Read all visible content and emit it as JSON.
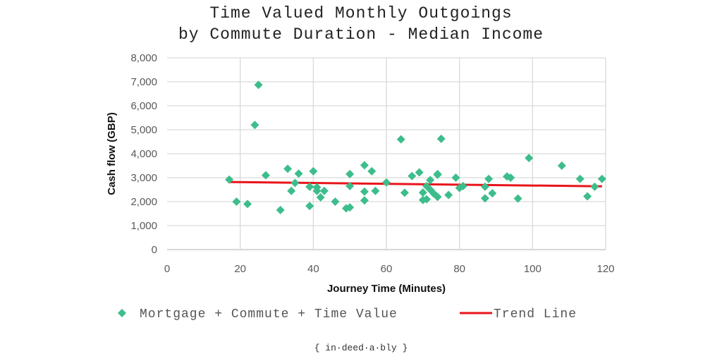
{
  "chart_data": {
    "type": "scatter",
    "title_line1": "Time Valued Monthly Outgoings",
    "title_line2": "by Commute Duration - Median Income",
    "xlabel": "Journey Time (Minutes)",
    "ylabel": "Cash flow (GBP)",
    "xlim": [
      0,
      120
    ],
    "ylim": [
      0,
      8000
    ],
    "xticks": [
      "0",
      "20",
      "40",
      "60",
      "80",
      "100",
      "120"
    ],
    "yticks": [
      "0",
      "1,000",
      "2,000",
      "3,000",
      "4,000",
      "5,000",
      "6,000",
      "7,000",
      "8,000"
    ],
    "grid": true,
    "legend_placement": "bottom",
    "colors": {
      "points": "#3dbd8c",
      "trend": "#e8141b",
      "grid": "#d9d9d9"
    },
    "series": [
      {
        "name": "Mortgage + Commute + Time Value",
        "marker": "diamond",
        "points": [
          [
            17,
            2920
          ],
          [
            19,
            2000
          ],
          [
            22,
            1900
          ],
          [
            24,
            5200
          ],
          [
            25,
            6870
          ],
          [
            27,
            3100
          ],
          [
            31,
            1650
          ],
          [
            33,
            3370
          ],
          [
            34,
            2450
          ],
          [
            35,
            2780
          ],
          [
            36,
            3170
          ],
          [
            39,
            2620
          ],
          [
            39,
            1820
          ],
          [
            40,
            3270
          ],
          [
            41,
            2600
          ],
          [
            41,
            2450
          ],
          [
            42,
            2180
          ],
          [
            43,
            2450
          ],
          [
            46,
            2000
          ],
          [
            49,
            1720
          ],
          [
            50,
            1760
          ],
          [
            50,
            3150
          ],
          [
            50,
            2650
          ],
          [
            54,
            3520
          ],
          [
            54,
            2420
          ],
          [
            54,
            2050
          ],
          [
            56,
            3270
          ],
          [
            57,
            2450
          ],
          [
            60,
            2800
          ],
          [
            64,
            4600
          ],
          [
            65,
            2370
          ],
          [
            67,
            3070
          ],
          [
            69,
            3220
          ],
          [
            70,
            2380
          ],
          [
            70,
            2070
          ],
          [
            71,
            2100
          ],
          [
            71,
            2650
          ],
          [
            72,
            2900
          ],
          [
            72,
            2500
          ],
          [
            73,
            2330
          ],
          [
            74,
            3120
          ],
          [
            74,
            3150
          ],
          [
            74,
            2200
          ],
          [
            75,
            4620
          ],
          [
            77,
            2280
          ],
          [
            79,
            3000
          ],
          [
            80,
            2570
          ],
          [
            81,
            2650
          ],
          [
            87,
            2620
          ],
          [
            87,
            2140
          ],
          [
            88,
            2950
          ],
          [
            89,
            2350
          ],
          [
            93,
            3050
          ],
          [
            94,
            3000
          ],
          [
            96,
            2130
          ],
          [
            99,
            3820
          ],
          [
            108,
            3500
          ],
          [
            113,
            2950
          ],
          [
            115,
            2220
          ],
          [
            117,
            2620
          ],
          [
            119,
            2950
          ]
        ]
      },
      {
        "name": "Trend Line",
        "type": "line",
        "points": [
          [
            17,
            2820
          ],
          [
            119,
            2640
          ]
        ]
      }
    ]
  },
  "credit": "{ in·deed·a·bly }"
}
